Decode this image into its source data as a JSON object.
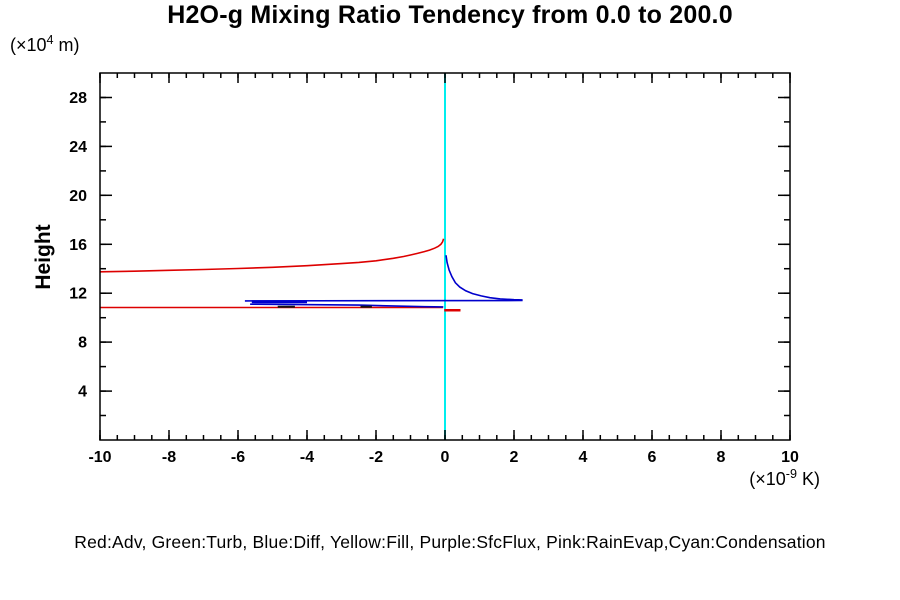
{
  "title": "H2O-g Mixing Ratio Tendency from 0.0 to 200.0",
  "y_axis_title": "Height",
  "y_unit": {
    "prefix": "(×10",
    "exp": "4",
    "suffix": " m)"
  },
  "x_unit": {
    "prefix": "(×10",
    "exp": "-9",
    "suffix": " K)"
  },
  "legend_note": "Red:Adv, Green:Turb, Blue:Diff, Yellow:Fill, Purple:SfcFlux, Pink:RainEvap,Cyan:Condensation",
  "colors": {
    "red_adv": "#dd0000",
    "blue_diff": "#0000cc",
    "cyan_condensation": "#00eeee",
    "axis": "#000000",
    "background": "#ffffff"
  },
  "chart_data": {
    "type": "line",
    "title": "H2O-g Mixing Ratio Tendency from 0.0 to 200.0",
    "xlabel": "(×10^-9 K)",
    "ylabel": "Height (×10^4 m)",
    "xlim": [
      -10,
      10
    ],
    "ylim": [
      0,
      30
    ],
    "grid": false,
    "legend_position": "bottom-text-line",
    "x_major_ticks": [
      -10,
      -8,
      -6,
      -4,
      -2,
      0,
      2,
      4,
      6,
      8,
      10
    ],
    "x_tick_labels": [
      "-10",
      "-8",
      "-6",
      "-4",
      "-2",
      "0",
      "2",
      "4",
      "6",
      "8",
      "10"
    ],
    "x_minor_step": 0.5,
    "y_major_ticks": [
      4,
      8,
      12,
      16,
      20,
      24,
      28
    ],
    "y_tick_labels": [
      "4",
      "8",
      "12",
      "16",
      "20",
      "24",
      "28"
    ],
    "y_minor_step": 2,
    "series": [
      {
        "name": "condensation-cyan-zero-line",
        "legend": "Cyan:Condensation",
        "color": "#00eeee",
        "width": 2,
        "points": [
          [
            0,
            0
          ],
          [
            0,
            30
          ]
        ]
      },
      {
        "name": "adv-red-upper-branch",
        "legend": "Red:Adv",
        "color": "#dd0000",
        "width": 1.6,
        "points": [
          [
            -10,
            13.75
          ],
          [
            -9,
            13.8
          ],
          [
            -8,
            13.87
          ],
          [
            -7,
            13.94
          ],
          [
            -6,
            14.02
          ],
          [
            -5,
            14.12
          ],
          [
            -4,
            14.25
          ],
          [
            -3,
            14.42
          ],
          [
            -2.5,
            14.52
          ],
          [
            -2,
            14.65
          ],
          [
            -1.5,
            14.85
          ],
          [
            -1.2,
            15.0
          ],
          [
            -1.0,
            15.12
          ],
          [
            -0.8,
            15.25
          ],
          [
            -0.6,
            15.4
          ],
          [
            -0.45,
            15.52
          ],
          [
            -0.3,
            15.68
          ],
          [
            -0.2,
            15.82
          ],
          [
            -0.12,
            16.0
          ],
          [
            -0.07,
            16.2
          ],
          [
            -0.04,
            16.45
          ]
        ]
      },
      {
        "name": "adv-red-lower-branch",
        "legend": "Red:Adv",
        "color": "#dd0000",
        "width": 1.6,
        "points": [
          [
            -10,
            10.83
          ],
          [
            -0.06,
            10.83
          ]
        ]
      },
      {
        "name": "adv-red-spur",
        "legend": "Red:Adv",
        "color": "#dd0000",
        "width": 2.5,
        "points": [
          [
            -0.02,
            10.6
          ],
          [
            0.45,
            10.6
          ]
        ]
      },
      {
        "name": "diff-blue-peak",
        "legend": "Blue:Diff",
        "color": "#0000cc",
        "width": 1.6,
        "points": [
          [
            0.03,
            15.1
          ],
          [
            0.06,
            14.5
          ],
          [
            0.12,
            13.9
          ],
          [
            0.2,
            13.35
          ],
          [
            0.3,
            12.85
          ],
          [
            0.43,
            12.5
          ],
          [
            0.6,
            12.2
          ],
          [
            0.8,
            11.97
          ],
          [
            1.05,
            11.78
          ],
          [
            1.3,
            11.63
          ],
          [
            1.6,
            11.53
          ],
          [
            2.0,
            11.47
          ],
          [
            2.25,
            11.45
          ]
        ]
      },
      {
        "name": "diff-blue-flat-line",
        "legend": "Blue:Diff",
        "color": "#0000cc",
        "width": 1.6,
        "points": [
          [
            -5.8,
            11.37
          ],
          [
            2.25,
            11.4
          ]
        ]
      },
      {
        "name": "diff-blue-thick-segment",
        "legend": "Blue:Diff",
        "color": "#0000cc",
        "width": 3,
        "points": [
          [
            -5.6,
            11.3
          ],
          [
            -4.0,
            11.3
          ]
        ]
      },
      {
        "name": "diff-blue-lower-strand",
        "legend": "Blue:Diff",
        "color": "#0000cc",
        "width": 1.6,
        "points": [
          [
            -5.65,
            11.1
          ],
          [
            -2.5,
            11.03
          ],
          [
            -0.6,
            10.9
          ],
          [
            -0.05,
            10.88
          ]
        ]
      },
      {
        "name": "overlap-dark-segment-1",
        "legend": "",
        "color": "#151515",
        "width": 2,
        "points": [
          [
            -4.85,
            10.9
          ],
          [
            -4.35,
            10.9
          ]
        ]
      },
      {
        "name": "overlap-dark-segment-2",
        "legend": "",
        "color": "#151515",
        "width": 2,
        "points": [
          [
            -2.45,
            10.9
          ],
          [
            -2.12,
            10.9
          ]
        ]
      }
    ]
  }
}
